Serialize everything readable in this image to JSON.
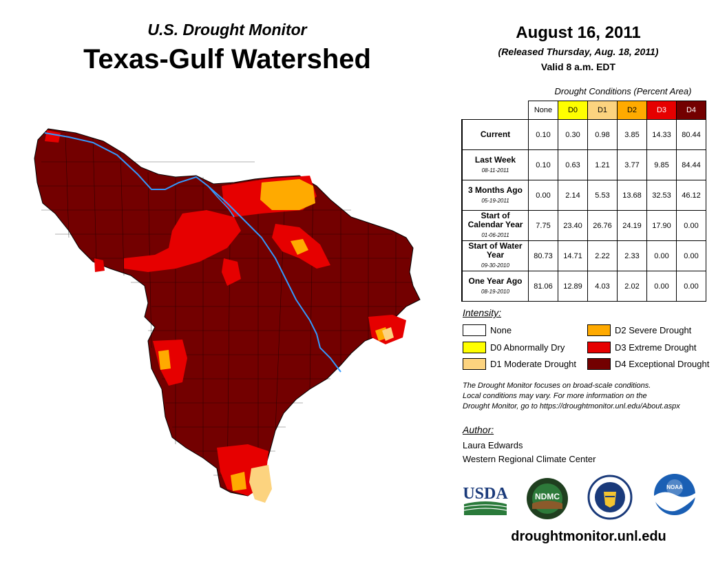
{
  "header": {
    "subtitle": "U.S. Drought Monitor",
    "title": "Texas-Gulf Watershed",
    "date": "August 16, 2011",
    "released": "(Released Thursday, Aug. 18, 2011)",
    "valid": "Valid 8 a.m. EDT"
  },
  "conditions": {
    "title": "Drought Conditions (Percent Area)",
    "columns": [
      "None",
      "D0",
      "D1",
      "D2",
      "D3",
      "D4"
    ],
    "rows": [
      {
        "label": "Current",
        "date": "",
        "values": [
          "0.10",
          "0.30",
          "0.98",
          "3.85",
          "14.33",
          "80.44"
        ]
      },
      {
        "label": "Last Week",
        "date": "08-11-2011",
        "values": [
          "0.10",
          "0.63",
          "1.21",
          "3.77",
          "9.85",
          "84.44"
        ]
      },
      {
        "label": "3 Months Ago",
        "date": "05-19-2011",
        "values": [
          "0.00",
          "2.14",
          "5.53",
          "13.68",
          "32.53",
          "46.12"
        ]
      },
      {
        "label": "Start of Calendar Year",
        "date": "01-06-2011",
        "values": [
          "7.75",
          "23.40",
          "26.76",
          "24.19",
          "17.90",
          "0.00"
        ]
      },
      {
        "label": "Start of Water Year",
        "date": "09-30-2010",
        "values": [
          "80.73",
          "14.71",
          "2.22",
          "2.33",
          "0.00",
          "0.00"
        ]
      },
      {
        "label": "One Year Ago",
        "date": "08-19-2010",
        "values": [
          "81.06",
          "12.89",
          "4.03",
          "2.02",
          "0.00",
          "0.00"
        ]
      }
    ]
  },
  "legend": {
    "title": "Intensity:",
    "items": [
      {
        "label": "None",
        "color": "#ffffff"
      },
      {
        "label": "D0 Abnormally Dry",
        "color": "#ffff00"
      },
      {
        "label": "D1 Moderate Drought",
        "color": "#fcd37f"
      },
      {
        "label": "D2 Severe Drought",
        "color": "#ffaa00"
      },
      {
        "label": "D3 Extreme Drought",
        "color": "#e60000"
      },
      {
        "label": "D4 Exceptional Drought",
        "color": "#730000"
      }
    ]
  },
  "note": {
    "line1": "The Drought Monitor focuses on broad-scale conditions.",
    "line2": "Local conditions may vary. For more information on the",
    "line3": "Drought Monitor, go to https://droughtmonitor.unl.edu/About.aspx"
  },
  "author": {
    "label": "Author:",
    "name": "Laura Edwards",
    "org": "Western Regional Climate Center"
  },
  "logos": {
    "usda": "USDA",
    "ndmc": "NDMC",
    "noaa": "NOAA"
  },
  "footer": {
    "url": "droughtmonitor.unl.edu"
  }
}
